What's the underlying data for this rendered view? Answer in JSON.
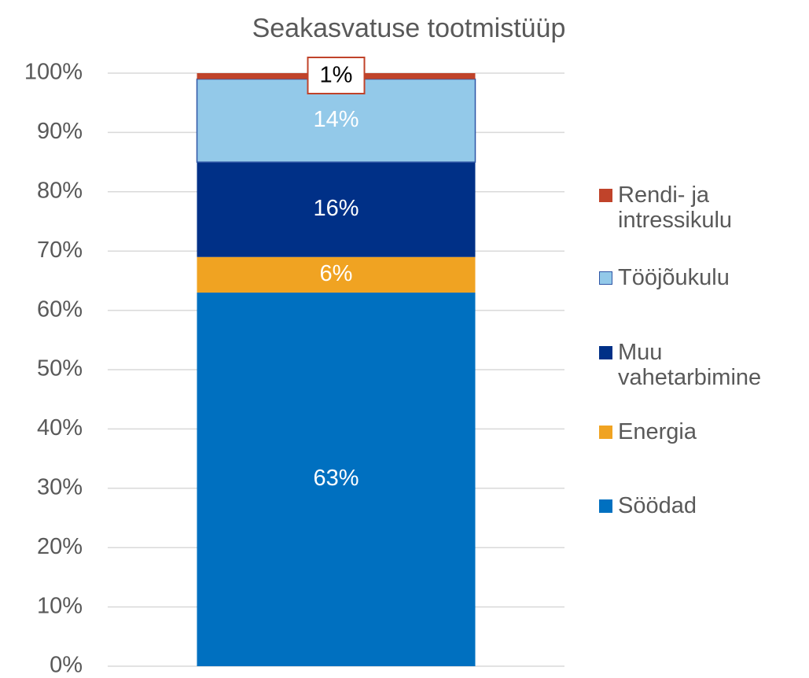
{
  "chart_data": {
    "type": "stacked_bar",
    "title": "Seakasvatuse tootmistüüp",
    "categories": [
      null
    ],
    "series": [
      {
        "name": "Söödad",
        "color": "#0070c0",
        "values": [
          63
        ],
        "value_labels": [
          "63%"
        ]
      },
      {
        "name": "Energia",
        "color": "#f0a322",
        "values": [
          6
        ],
        "value_labels": [
          "6%"
        ]
      },
      {
        "name": "Muu vahetarbimine",
        "color": "#003087",
        "values": [
          16
        ],
        "value_labels": [
          "16%"
        ]
      },
      {
        "name": "Tööjõukulu",
        "color": "#93c9e9",
        "values": [
          14
        ],
        "value_labels": [
          "14%"
        ]
      },
      {
        "name": "Rendi- ja intressikulu",
        "color": "#c0432a",
        "values": [
          1
        ],
        "value_labels": [
          "1%"
        ]
      }
    ],
    "ylim": [
      0,
      100
    ],
    "yticks": [
      {
        "value": 0,
        "label": "0%"
      },
      {
        "value": 10,
        "label": "10%"
      },
      {
        "value": 20,
        "label": "20%"
      },
      {
        "value": 30,
        "label": "30%"
      },
      {
        "value": 40,
        "label": "40%"
      },
      {
        "value": 50,
        "label": "50%"
      },
      {
        "value": 60,
        "label": "60%"
      },
      {
        "value": 70,
        "label": "70%"
      },
      {
        "value": 80,
        "label": "80%"
      },
      {
        "value": 90,
        "label": "90%"
      },
      {
        "value": 100,
        "label": "100%"
      }
    ],
    "grid": true,
    "legend": "right"
  }
}
